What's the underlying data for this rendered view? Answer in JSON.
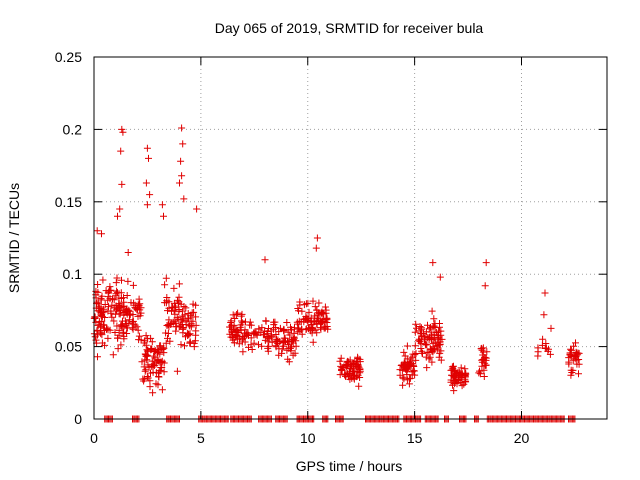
{
  "chart_data": {
    "type": "scatter",
    "title": "Day 065 of 2019, SRMTID for receiver bula",
    "xlabel": "GPS time / hours",
    "ylabel": "SRMTID / TECUs",
    "xlim": [
      0,
      24
    ],
    "ylim": [
      0,
      0.25
    ],
    "xticks": [
      0,
      5,
      10,
      15,
      20
    ],
    "xtick_labels": [
      "0",
      "5",
      "10",
      "15",
      "20"
    ],
    "yticks": [
      0,
      0.05,
      0.1,
      0.15,
      0.2,
      0.25
    ],
    "ytick_labels": [
      "0",
      "0.05",
      "0.1",
      "0.15",
      "0.2",
      "0.25"
    ],
    "grid": true,
    "marker": "+",
    "marker_color": "#e00000",
    "series": [
      {
        "name": "SRMTID",
        "clusters": [
          {
            "x": [
              0.0,
              0.5
            ],
            "y_mean": 0.068,
            "y_spread": 0.022,
            "count": 55
          },
          {
            "x": [
              0.5,
              1.3
            ],
            "y_mean": 0.075,
            "y_spread": 0.022,
            "count": 60
          },
          {
            "x": [
              1.3,
              2.2
            ],
            "y_mean": 0.07,
            "y_spread": 0.02,
            "count": 65
          },
          {
            "x": [
              2.2,
              3.3
            ],
            "y_mean": 0.04,
            "y_spread": 0.018,
            "count": 80
          },
          {
            "x": [
              3.3,
              4.0
            ],
            "y_mean": 0.075,
            "y_spread": 0.02,
            "count": 45
          },
          {
            "x": [
              4.0,
              4.8
            ],
            "y_mean": 0.065,
            "y_spread": 0.018,
            "count": 50
          },
          {
            "x": [
              6.3,
              7.4
            ],
            "y_mean": 0.06,
            "y_spread": 0.012,
            "count": 60
          },
          {
            "x": [
              7.4,
              8.5
            ],
            "y_mean": 0.058,
            "y_spread": 0.01,
            "count": 40
          },
          {
            "x": [
              8.5,
              9.5
            ],
            "y_mean": 0.055,
            "y_spread": 0.012,
            "count": 55
          },
          {
            "x": [
              9.5,
              10.5
            ],
            "y_mean": 0.068,
            "y_spread": 0.012,
            "count": 60
          },
          {
            "x": [
              10.5,
              11.0
            ],
            "y_mean": 0.07,
            "y_spread": 0.01,
            "count": 30
          },
          {
            "x": [
              11.5,
              12.5
            ],
            "y_mean": 0.035,
            "y_spread": 0.01,
            "count": 70
          },
          {
            "x": [
              14.3,
              15.0
            ],
            "y_mean": 0.035,
            "y_spread": 0.012,
            "count": 50
          },
          {
            "x": [
              15.0,
              16.3
            ],
            "y_mean": 0.055,
            "y_spread": 0.015,
            "count": 90
          },
          {
            "x": [
              16.7,
              17.4
            ],
            "y_mean": 0.03,
            "y_spread": 0.01,
            "count": 55
          },
          {
            "x": [
              18.0,
              18.4
            ],
            "y_mean": 0.04,
            "y_spread": 0.01,
            "count": 25
          },
          {
            "x": [
              20.6,
              21.4
            ],
            "y_mean": 0.048,
            "y_spread": 0.01,
            "count": 12
          },
          {
            "x": [
              22.2,
              22.7
            ],
            "y_mean": 0.043,
            "y_spread": 0.01,
            "count": 30
          }
        ],
        "outliers": [
          {
            "x": 1.3,
            "y": 0.2
          },
          {
            "x": 1.35,
            "y": 0.198
          },
          {
            "x": 1.25,
            "y": 0.185
          },
          {
            "x": 1.3,
            "y": 0.162
          },
          {
            "x": 2.5,
            "y": 0.187
          },
          {
            "x": 2.55,
            "y": 0.18
          },
          {
            "x": 2.45,
            "y": 0.163
          },
          {
            "x": 2.6,
            "y": 0.155
          },
          {
            "x": 2.5,
            "y": 0.148
          },
          {
            "x": 3.2,
            "y": 0.148
          },
          {
            "x": 3.25,
            "y": 0.14
          },
          {
            "x": 4.1,
            "y": 0.201
          },
          {
            "x": 4.15,
            "y": 0.19
          },
          {
            "x": 4.05,
            "y": 0.178
          },
          {
            "x": 4.1,
            "y": 0.168
          },
          {
            "x": 4.0,
            "y": 0.163
          },
          {
            "x": 4.2,
            "y": 0.152
          },
          {
            "x": 0.15,
            "y": 0.13
          },
          {
            "x": 0.35,
            "y": 0.128
          },
          {
            "x": 1.1,
            "y": 0.14
          },
          {
            "x": 1.2,
            "y": 0.145
          },
          {
            "x": 1.6,
            "y": 0.115
          },
          {
            "x": 4.8,
            "y": 0.145
          },
          {
            "x": 8.0,
            "y": 0.11
          },
          {
            "x": 10.45,
            "y": 0.125
          },
          {
            "x": 10.4,
            "y": 0.118
          },
          {
            "x": 15.85,
            "y": 0.108
          },
          {
            "x": 16.2,
            "y": 0.098
          },
          {
            "x": 18.35,
            "y": 0.108
          },
          {
            "x": 18.3,
            "y": 0.092
          },
          {
            "x": 21.1,
            "y": 0.087
          },
          {
            "x": 21.05,
            "y": 0.072
          },
          {
            "x": 3.9,
            "y": 0.033
          }
        ],
        "zero_segments": [
          [
            0.5,
            0.9
          ],
          [
            1.8,
            2.1
          ],
          [
            3.4,
            4.0
          ],
          [
            4.9,
            6.3
          ],
          [
            6.4,
            7.4
          ],
          [
            7.7,
            8.3
          ],
          [
            8.5,
            9.1
          ],
          [
            9.5,
            10.3
          ],
          [
            10.7,
            11.0
          ],
          [
            11.3,
            11.7
          ],
          [
            12.7,
            14.3
          ],
          [
            14.5,
            15.3
          ],
          [
            15.5,
            16.1
          ],
          [
            16.4,
            16.6
          ],
          [
            17.1,
            17.4
          ],
          [
            17.8,
            18.0
          ],
          [
            18.4,
            22.0
          ],
          [
            22.2,
            22.5
          ]
        ]
      }
    ]
  }
}
